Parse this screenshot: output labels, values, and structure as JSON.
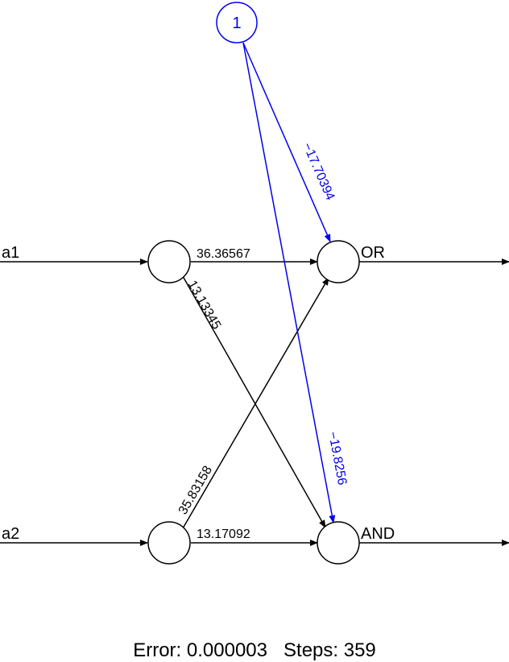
{
  "inputs": [
    "a1",
    "a2"
  ],
  "outputs": [
    "OR",
    "AND"
  ],
  "bias": {
    "label": "1",
    "color": "#0000ee"
  },
  "weights": {
    "a1_or": "36.36567",
    "a1_and": "13.13345",
    "a2_or": "35.83158",
    "a2_and": "13.17092",
    "bias_or": "−17.70394",
    "bias_and": "−19.8256"
  },
  "footer": {
    "error_label": "Error:",
    "error_value": "0.000003",
    "steps_label": "Steps:",
    "steps_value": "359"
  }
}
